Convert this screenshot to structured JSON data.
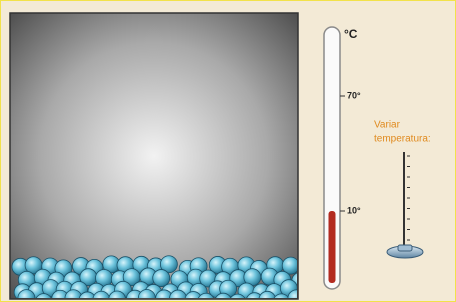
{
  "thermometer": {
    "unit": "°C",
    "ticks": [
      "70°",
      "10°"
    ]
  },
  "control": {
    "label_line1": "Variar",
    "label_line2": "temperatura:"
  }
}
